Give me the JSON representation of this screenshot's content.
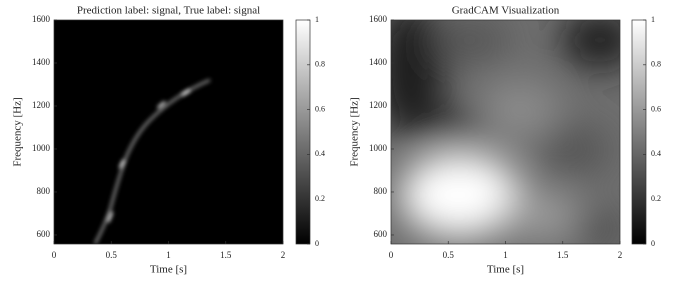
{
  "chart_data": [
    {
      "type": "heatmap",
      "title": "Prediction label: signal, True label: signal",
      "xlabel": "Time [s]",
      "ylabel": "Frequency [Hz]",
      "xlim": [
        0,
        2
      ],
      "xticks": [
        0,
        0.5,
        1,
        1.5,
        2
      ],
      "ylim": [
        558,
        1600
      ],
      "yticks": [
        600,
        800,
        1000,
        1200,
        1400,
        1600
      ],
      "clim": [
        0,
        1
      ],
      "cticks": [
        0,
        0.2,
        0.4,
        0.6,
        0.8,
        1
      ]
    },
    {
      "type": "heatmap",
      "title": "GradCAM Visualization",
      "xlabel": "Time [s]",
      "ylabel": "Frequency [Hz]",
      "xlim": [
        0,
        2
      ],
      "xticks": [
        0,
        0.5,
        1,
        1.5,
        2
      ],
      "ylim": [
        558,
        1600
      ],
      "yticks": [
        600,
        800,
        1000,
        1200,
        1400,
        1600
      ],
      "clim": [
        0,
        1
      ],
      "cticks": [
        0,
        0.2,
        0.4,
        0.6,
        0.8,
        1
      ]
    }
  ]
}
